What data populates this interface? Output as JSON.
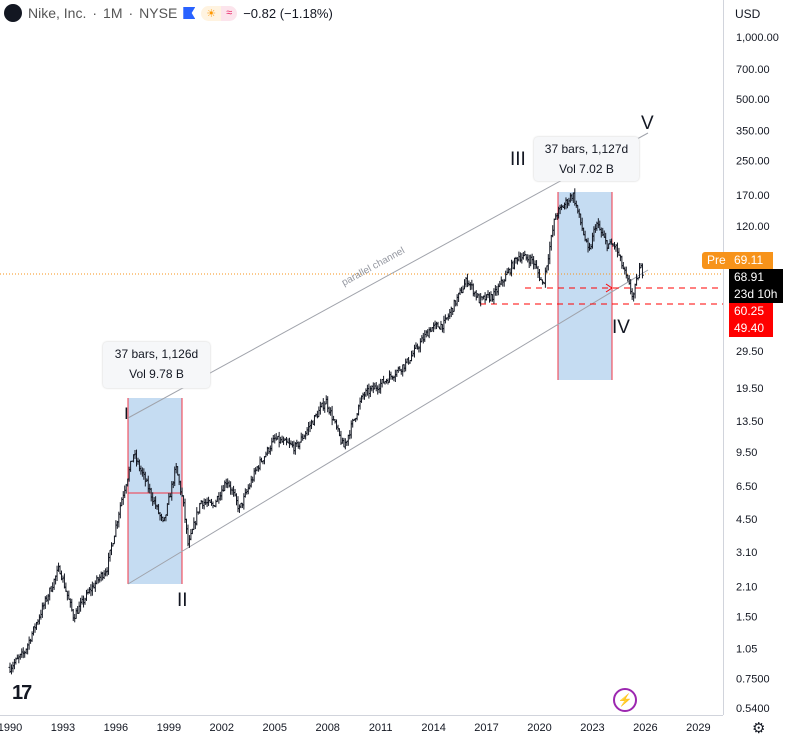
{
  "header": {
    "symbol": "Nike, Inc.",
    "interval": "1M",
    "exchange": "NYSE",
    "change": "−0.82 (−1.18%)",
    "flag_color": "#2962ff"
  },
  "price_axis": {
    "currency": "USD",
    "scale": "log",
    "ticks": [
      "1,000.00",
      "700.00",
      "500.00",
      "350.00",
      "250.00",
      "170.00",
      "120.00",
      "29.50",
      "19.50",
      "13.50",
      "9.50",
      "6.50",
      "4.50",
      "3.10",
      "2.10",
      "1.50",
      "1.05",
      "0.7500",
      "0.5400"
    ]
  },
  "time_axis": {
    "ticks": [
      "1990",
      "1993",
      "1996",
      "1999",
      "2002",
      "2005",
      "2008",
      "2011",
      "2014",
      "2017",
      "2020",
      "2023",
      "2026",
      "2029"
    ]
  },
  "price_tags": {
    "pre_label": "Pre",
    "pre_price": "69.11",
    "last_price": "68.91",
    "countdown": "23d 10h",
    "level1": "60.25",
    "level2": "49.40",
    "pre_color": "#f7931a",
    "level_color": "#ff0000"
  },
  "annotations": {
    "range1": {
      "line1": "37 bars, 1,126d",
      "line2": "Vol 9.78 B"
    },
    "range2": {
      "line1": "37 bars, 1,127d",
      "line2": "Vol 7.02 B"
    },
    "channel_label": "parallel channel",
    "waves": [
      "I",
      "II",
      "III",
      "IV",
      "V"
    ]
  },
  "branding": {
    "logo": "TV"
  },
  "chart_data": {
    "type": "ohlc",
    "title": "Nike, Inc. · 1M · NYSE",
    "yscale": "log",
    "ylim": [
      0.54,
      1000
    ],
    "xlim": [
      1990,
      2030
    ],
    "price_path": [
      [
        1990,
        0.85
      ],
      [
        1990.8,
        1.0
      ],
      [
        1991.5,
        1.4
      ],
      [
        1992.8,
        2.6
      ],
      [
        1993.6,
        1.5
      ],
      [
        1994.5,
        2.0
      ],
      [
        1995.5,
        2.6
      ],
      [
        1996.3,
        5.5
      ],
      [
        1997.0,
        9.3
      ],
      [
        1997.8,
        6.5
      ],
      [
        1998.7,
        4.2
      ],
      [
        1999.4,
        8.0
      ],
      [
        1999.8,
        5.5
      ],
      [
        2000.1,
        3.3
      ],
      [
        2000.8,
        5.5
      ],
      [
        2001.5,
        5.2
      ],
      [
        2002.3,
        7.0
      ],
      [
        2003.0,
        5.0
      ],
      [
        2004.0,
        8.0
      ],
      [
        2005.0,
        11.0
      ],
      [
        2006.2,
        10.0
      ],
      [
        2007.9,
        17.0
      ],
      [
        2008.9,
        10.0
      ],
      [
        2010.0,
        18.0
      ],
      [
        2011.2,
        21.0
      ],
      [
        2012.5,
        26.0
      ],
      [
        2013.8,
        38.0
      ],
      [
        2014.6,
        40.0
      ],
      [
        2015.9,
        66.0
      ],
      [
        2016.6,
        52.0
      ],
      [
        2017.4,
        55.0
      ],
      [
        2018.8,
        86.0
      ],
      [
        2019.6,
        82.0
      ],
      [
        2020.2,
        62.0
      ],
      [
        2020.9,
        135.0
      ],
      [
        2021.9,
        172.0
      ],
      [
        2022.8,
        88.0
      ],
      [
        2023.2,
        125.0
      ],
      [
        2023.8,
        98.0
      ],
      [
        2024.3,
        96.0
      ],
      [
        2024.8,
        72.0
      ],
      [
        2025.3,
        54.0
      ],
      [
        2025.7,
        76.0
      ],
      [
        2025.95,
        69.0
      ]
    ]
  }
}
